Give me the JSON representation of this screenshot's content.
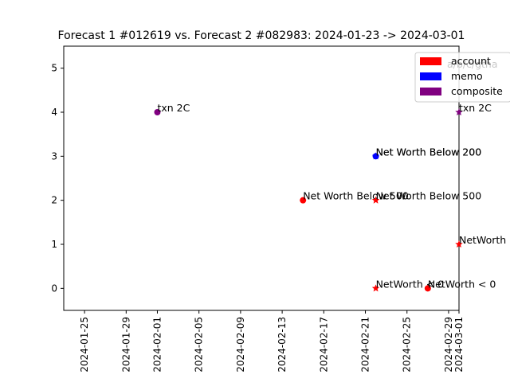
{
  "chart_data": {
    "type": "scatter",
    "title": "Forecast 1 #012619 vs. Forecast 2 #082983: 2024-01-23 -> 2024-03-01",
    "xlabel": "",
    "ylabel": "",
    "xlim": [
      "2024-01-23",
      "2024-03-01"
    ],
    "ylim": [
      -0.5,
      5.5
    ],
    "x_ticks": [
      "2024-01-25",
      "2024-01-29",
      "2024-02-01",
      "2024-02-05",
      "2024-02-09",
      "2024-02-13",
      "2024-02-17",
      "2024-02-21",
      "2024-02-25",
      "2024-02-29",
      "2024-03-01"
    ],
    "y_ticks": [
      "0",
      "1",
      "2",
      "3",
      "4",
      "5"
    ],
    "grid": false,
    "legend": {
      "placement": "top-right",
      "entries": [
        {
          "label": "account",
          "color": "#ff0000"
        },
        {
          "label": "memo",
          "color": "#0000ff"
        },
        {
          "label": "composite",
          "color": "#800080"
        }
      ]
    },
    "series": [
      {
        "marker": "circle",
        "points": [
          {
            "x": "2024-02-01",
            "y": 4,
            "label": "txn 2C",
            "category": "composite"
          },
          {
            "x": "2024-02-22",
            "y": 3,
            "label": "Net Worth Below 200",
            "category": "memo"
          },
          {
            "x": "2024-02-15",
            "y": 2,
            "label": "Net Worth Below 500",
            "category": "account"
          },
          {
            "x": "2024-02-27",
            "y": 0,
            "label": "NetWorth < 0",
            "category": "account"
          }
        ]
      },
      {
        "marker": "star",
        "points": [
          {
            "x": "2024-03-01",
            "y": 4,
            "label": "txn 2C",
            "category": "composite"
          },
          {
            "x": "2024-02-22",
            "y": 3,
            "label": "Net Worth Below 200",
            "category": "memo"
          },
          {
            "x": "2024-02-22",
            "y": 2,
            "label": "Net Worth Below 500",
            "category": "account"
          },
          {
            "x": "2024-03-01",
            "y": 1,
            "label": "NetWorth",
            "category": "account"
          },
          {
            "x": "2024-02-22",
            "y": 0,
            "label": "NetWorth < 0",
            "category": "account"
          }
        ]
      }
    ],
    "legend_overlap_text": "a/b/c/gtha"
  }
}
